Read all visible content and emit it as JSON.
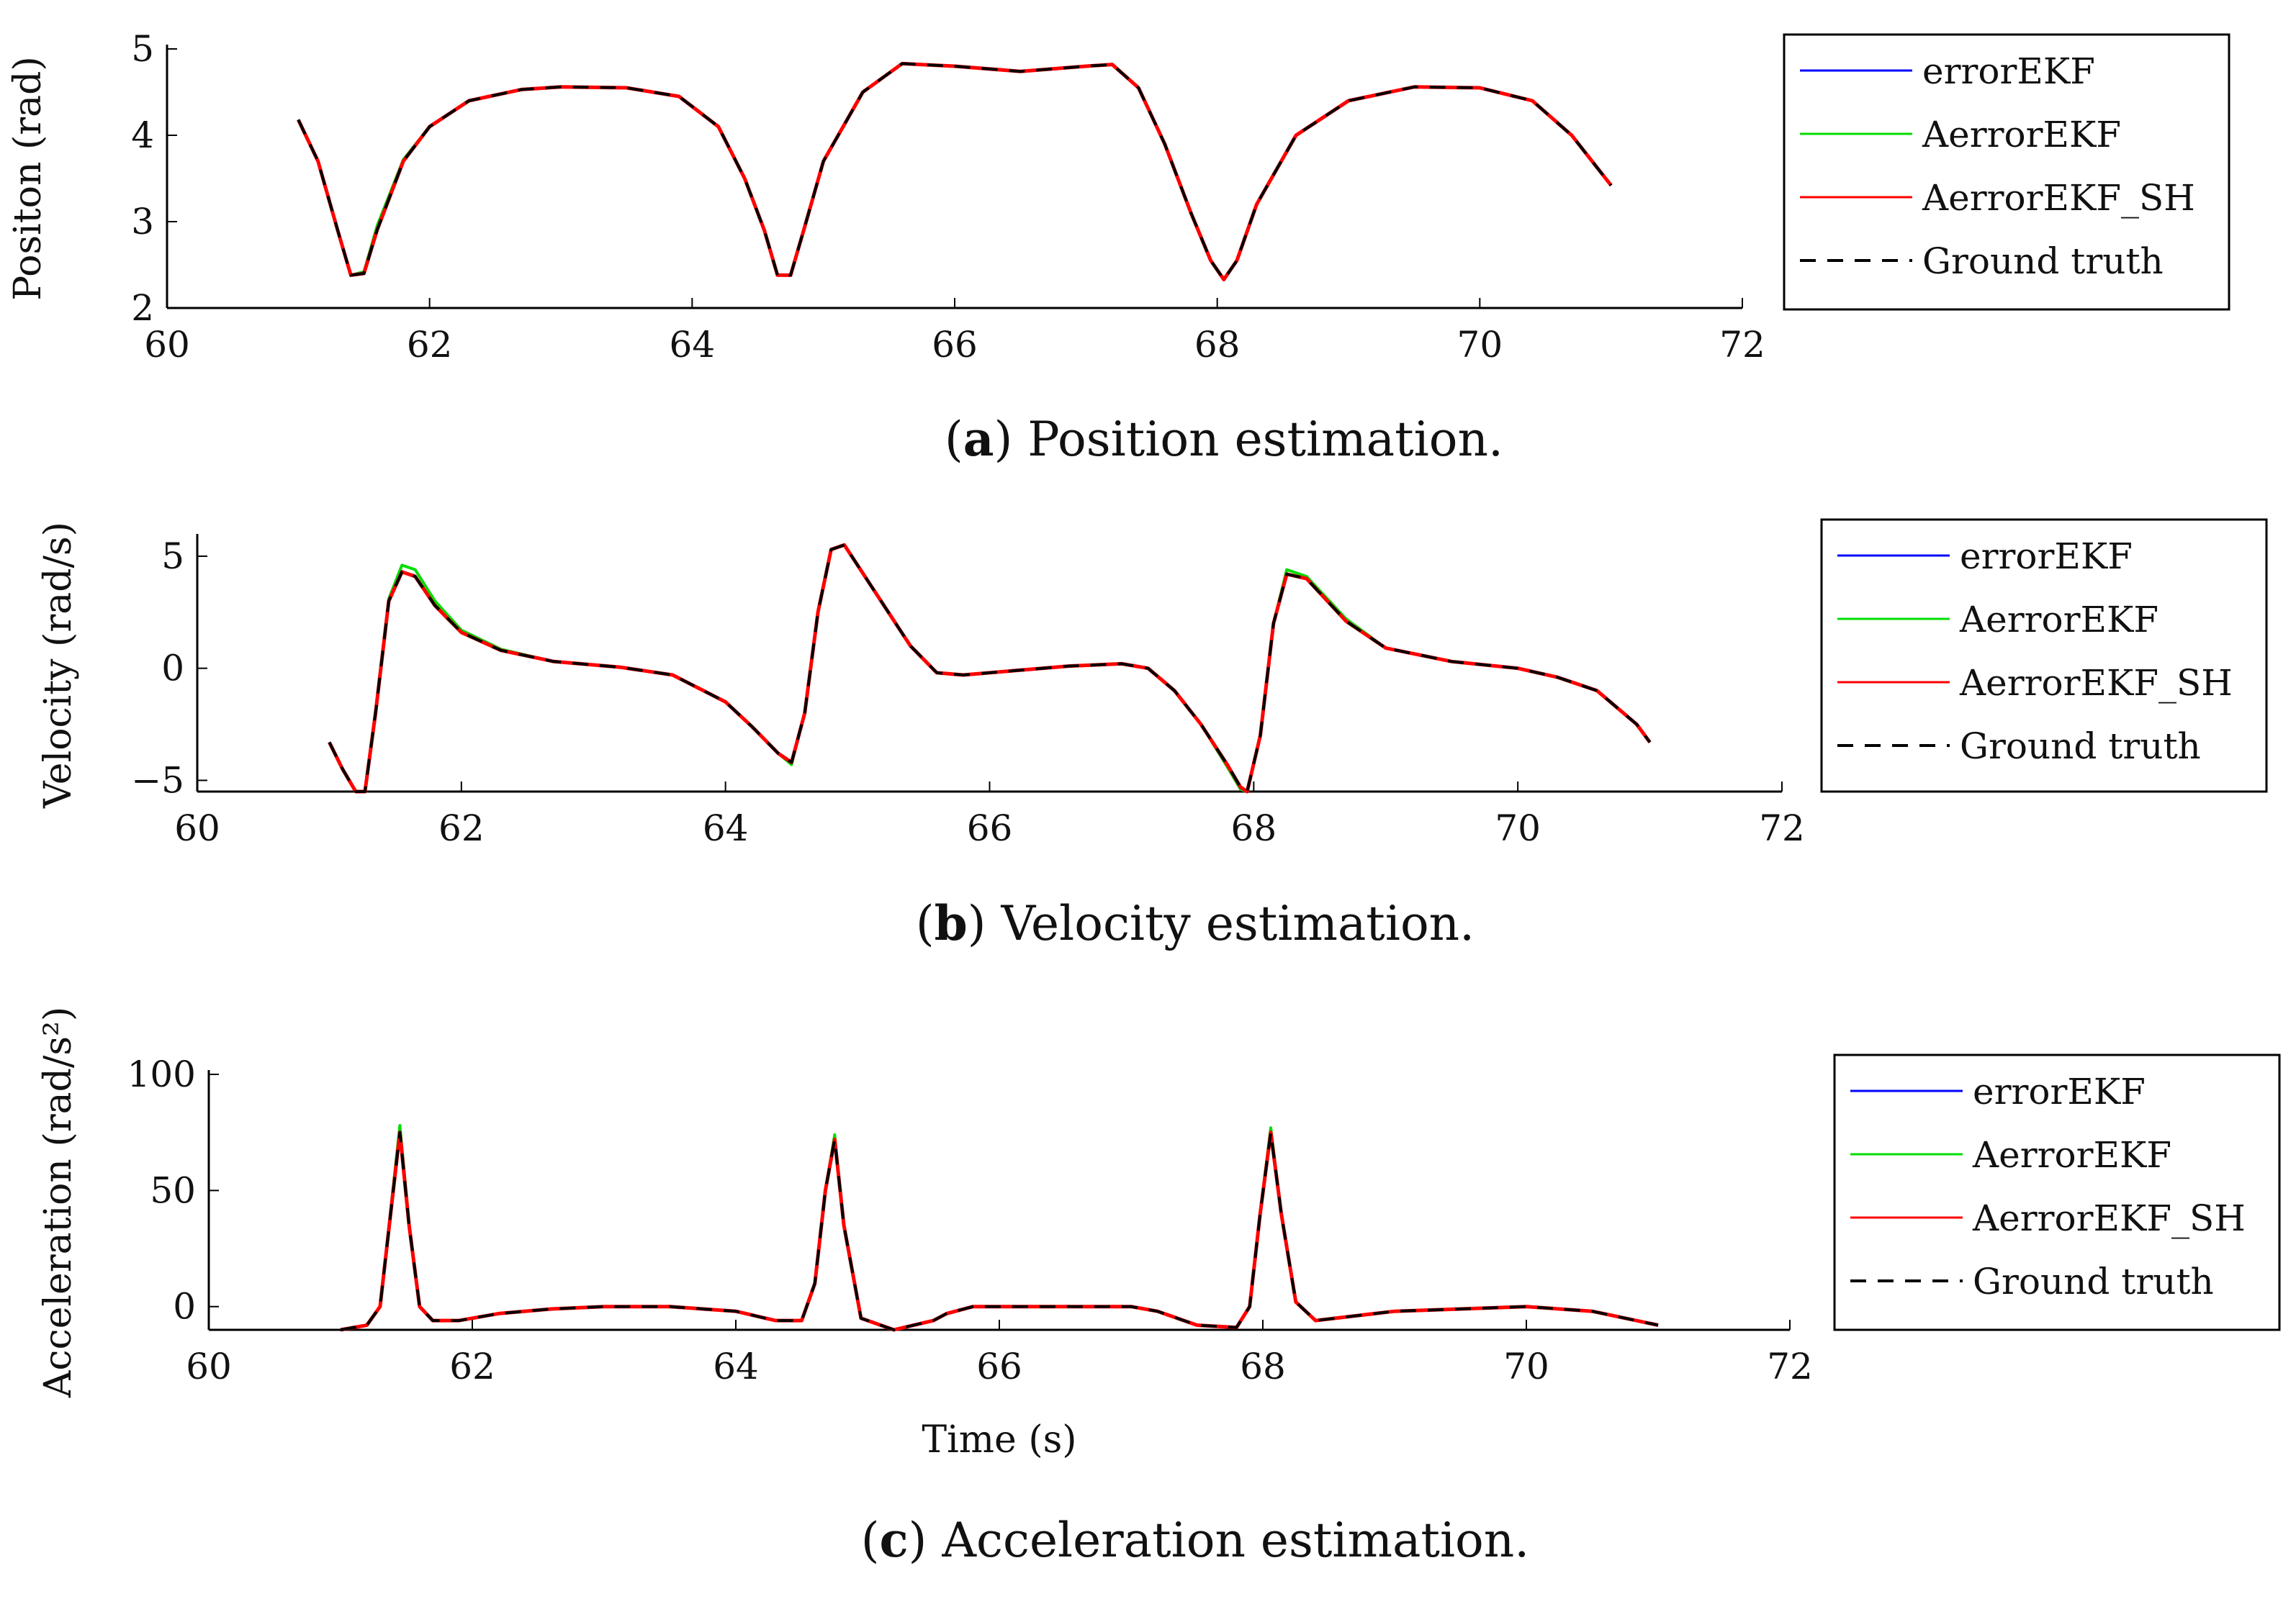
{
  "figure_title": "",
  "legend_entries": [
    {
      "name": "errorEKF",
      "color": "#0000ff",
      "dash": false
    },
    {
      "name": "AerrorEKF",
      "color": "#00dd00",
      "dash": false
    },
    {
      "name": "AerrorEKF_SH",
      "color": "#ff0000",
      "dash": false
    },
    {
      "name": "Ground truth",
      "color": "#000000",
      "dash": true
    }
  ],
  "chart_data": [
    {
      "type": "line",
      "caption_label": "a",
      "caption_text": "Position estimation.",
      "xlabel": "",
      "ylabel": "Positon (rad)",
      "xlim": [
        60,
        72
      ],
      "ylim": [
        2,
        5
      ],
      "xticks": [
        60,
        62,
        64,
        66,
        68,
        70,
        72
      ],
      "yticks": [
        2,
        3,
        4,
        5
      ],
      "ytick_labels": [
        "2",
        "3",
        "4",
        "5"
      ],
      "grid": false,
      "legend_position": "right",
      "x": [
        61.0,
        61.15,
        61.3,
        61.4,
        61.5,
        61.6,
        61.8,
        62.0,
        62.3,
        62.7,
        63.0,
        63.5,
        63.9,
        64.2,
        64.4,
        64.55,
        64.65,
        64.75,
        64.85,
        65.0,
        65.3,
        65.6,
        66.0,
        66.5,
        67.0,
        67.2,
        67.4,
        67.6,
        67.8,
        67.95,
        68.05,
        68.15,
        68.3,
        68.6,
        69.0,
        69.5,
        70.0,
        70.4,
        70.7,
        71.0
      ],
      "series": [
        {
          "name": "Ground truth",
          "values": [
            4.18,
            3.7,
            2.9,
            2.38,
            2.4,
            2.9,
            3.7,
            4.1,
            4.4,
            4.53,
            4.56,
            4.55,
            4.45,
            4.1,
            3.5,
            2.9,
            2.38,
            2.38,
            2.9,
            3.7,
            4.5,
            4.83,
            4.8,
            4.74,
            4.8,
            4.82,
            4.55,
            3.9,
            3.1,
            2.55,
            2.33,
            2.55,
            3.2,
            4.0,
            4.4,
            4.56,
            4.55,
            4.4,
            4.0,
            3.42
          ]
        },
        {
          "name": "AerrorEKF",
          "values": [
            4.18,
            3.7,
            2.9,
            2.38,
            2.42,
            2.95,
            3.72,
            4.1,
            4.4,
            4.53,
            4.56,
            4.55,
            4.45,
            4.1,
            3.5,
            2.9,
            2.38,
            2.38,
            2.9,
            3.7,
            4.5,
            4.83,
            4.8,
            4.74,
            4.8,
            4.82,
            4.55,
            3.9,
            3.1,
            2.55,
            2.33,
            2.55,
            3.2,
            4.0,
            4.4,
            4.56,
            4.55,
            4.4,
            4.0,
            3.42
          ]
        }
      ]
    },
    {
      "type": "line",
      "caption_label": "b",
      "caption_text": "Velocity estimation.",
      "xlabel": "",
      "ylabel": "Velocity (rad/s)",
      "xlim": [
        60,
        72
      ],
      "ylim": [
        -5.5,
        5.8
      ],
      "xticks": [
        60,
        62,
        64,
        66,
        68,
        70,
        72
      ],
      "yticks": [
        -5,
        0,
        5
      ],
      "ytick_labels": [
        "−5",
        "0",
        "5"
      ],
      "grid": false,
      "legend_position": "right",
      "x": [
        61.0,
        61.1,
        61.2,
        61.27,
        61.35,
        61.45,
        61.55,
        61.65,
        61.8,
        62.0,
        62.3,
        62.7,
        63.2,
        63.6,
        64.0,
        64.2,
        64.4,
        64.5,
        64.6,
        64.7,
        64.8,
        64.9,
        65.0,
        65.2,
        65.4,
        65.6,
        65.8,
        66.2,
        66.6,
        67.0,
        67.2,
        67.4,
        67.6,
        67.8,
        67.9,
        67.95,
        68.05,
        68.15,
        68.25,
        68.4,
        68.7,
        69.0,
        69.5,
        70.0,
        70.3,
        70.6,
        70.9,
        71.0
      ],
      "series": [
        {
          "name": "Ground truth",
          "values": [
            -3.3,
            -4.5,
            -5.5,
            -5.5,
            -2.0,
            3.0,
            4.3,
            4.1,
            2.8,
            1.6,
            0.8,
            0.3,
            0.05,
            -0.3,
            -1.5,
            -2.6,
            -3.8,
            -4.2,
            -2.0,
            2.5,
            5.3,
            5.5,
            4.6,
            2.8,
            1.0,
            -0.2,
            -0.3,
            -0.1,
            0.1,
            0.2,
            0.0,
            -1.0,
            -2.5,
            -4.3,
            -5.3,
            -5.5,
            -3.0,
            2.0,
            4.2,
            4.0,
            2.1,
            0.9,
            0.3,
            0.0,
            -0.4,
            -1.0,
            -2.5,
            -3.3
          ]
        },
        {
          "name": "AerrorEKF",
          "values": [
            -3.3,
            -4.5,
            -5.5,
            -5.5,
            -1.9,
            3.1,
            4.6,
            4.4,
            3.0,
            1.7,
            0.85,
            0.3,
            0.05,
            -0.3,
            -1.5,
            -2.6,
            -3.8,
            -4.3,
            -2.0,
            2.5,
            5.3,
            5.5,
            4.6,
            2.8,
            1.0,
            -0.2,
            -0.3,
            -0.1,
            0.1,
            0.2,
            0.0,
            -1.0,
            -2.5,
            -4.4,
            -5.4,
            -5.5,
            -3.0,
            2.0,
            4.4,
            4.1,
            2.2,
            0.9,
            0.3,
            0.0,
            -0.4,
            -1.0,
            -2.5,
            -3.3
          ]
        }
      ]
    },
    {
      "type": "line",
      "caption_label": "c",
      "caption_text": "Acceleration estimation.",
      "xlabel": "Time (s)",
      "ylabel": "Acceleration (rad/s²)",
      "xlim": [
        60,
        72
      ],
      "ylim": [
        -10,
        100
      ],
      "xticks": [
        60,
        62,
        64,
        66,
        68,
        70,
        72
      ],
      "yticks": [
        0,
        50,
        100
      ],
      "ytick_labels": [
        "0",
        "50",
        "100"
      ],
      "grid": false,
      "legend_position": "right",
      "x": [
        61.0,
        61.2,
        61.3,
        61.37,
        61.45,
        61.52,
        61.6,
        61.7,
        61.9,
        62.2,
        62.6,
        63.0,
        63.5,
        64.0,
        64.3,
        64.5,
        64.6,
        64.68,
        64.75,
        64.82,
        64.95,
        65.2,
        65.5,
        65.6,
        65.8,
        66.2,
        66.6,
        67.0,
        67.2,
        67.5,
        67.8,
        67.9,
        67.98,
        68.06,
        68.14,
        68.25,
        68.4,
        68.7,
        69.0,
        69.5,
        70.0,
        70.5,
        71.0
      ],
      "series": [
        {
          "name": "Ground truth",
          "values": [
            -10,
            -8,
            0,
            35,
            75,
            35,
            0,
            -6,
            -6,
            -3,
            -1,
            0,
            0,
            -2,
            -6,
            -6,
            10,
            50,
            72,
            35,
            -5,
            -10,
            -6,
            -3,
            0,
            0,
            0,
            0,
            -2,
            -8,
            -9,
            0,
            40,
            75,
            40,
            2,
            -6,
            -4,
            -2,
            -1,
            0,
            -2,
            -8
          ]
        },
        {
          "name": "AerrorEKF",
          "values": [
            -10,
            -8,
            0,
            36,
            78,
            36,
            0,
            -6,
            -6,
            -3,
            -1,
            0,
            0,
            -2,
            -6,
            -6,
            10,
            50,
            74,
            35,
            -5,
            -10,
            -6,
            -3,
            0,
            0,
            0,
            0,
            -2,
            -8,
            -9,
            0,
            40,
            77,
            40,
            2,
            -6,
            -4,
            -2,
            -1,
            0,
            -2,
            -8
          ]
        }
      ]
    }
  ]
}
